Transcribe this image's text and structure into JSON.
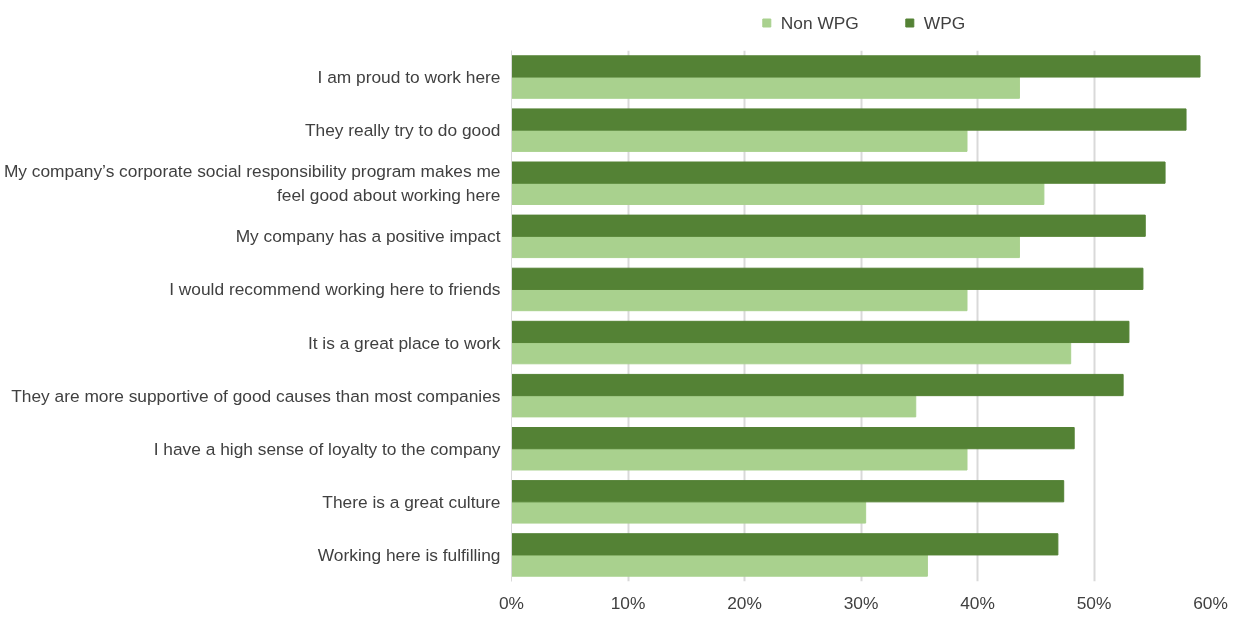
{
  "chart_data": {
    "type": "bar",
    "orientation": "horizontal",
    "categories": [
      "I am proud to work here",
      "They really try to do good",
      "My company’s corporate social responsibility program makes me feel good about working here",
      "My company has a positive impact",
      "I would recommend working here to friends",
      "It is a great place to work",
      "They are more supportive of good causes than most companies",
      "I have a high sense of loyalty to the company",
      "There is a great culture",
      "Working here is fulfilling"
    ],
    "series": [
      {
        "name": "Non WPG",
        "color": "#a9d18e",
        "values": [
          43.6,
          39.1,
          45.7,
          43.6,
          39.1,
          48.0,
          34.7,
          39.1,
          30.4,
          35.7
        ]
      },
      {
        "name": "WPG",
        "color": "#548235",
        "values": [
          59.1,
          57.9,
          56.1,
          54.4,
          54.2,
          53.0,
          52.5,
          48.3,
          47.4,
          46.9
        ]
      }
    ],
    "xlim": [
      0,
      60
    ],
    "xticks": [
      {
        "value": 0,
        "label": "0%"
      },
      {
        "value": 10,
        "label": "10%"
      },
      {
        "value": 20,
        "label": "20%"
      },
      {
        "value": 30,
        "label": "30%"
      },
      {
        "value": 40,
        "label": "40%"
      },
      {
        "value": 50,
        "label": "50%"
      },
      {
        "value": 60,
        "label": "60%"
      }
    ],
    "grid": "x",
    "legend": "top"
  }
}
